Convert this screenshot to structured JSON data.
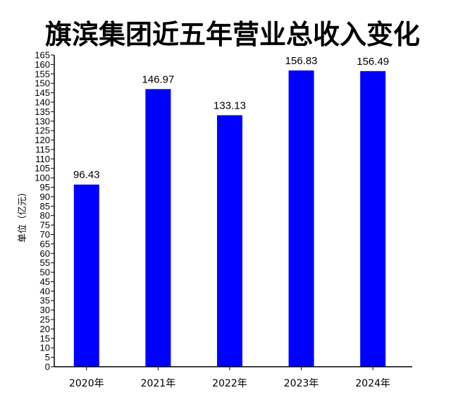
{
  "chart_data": {
    "type": "bar",
    "title": "旗滨集团近五年营业总收入变化",
    "ylabel": "单位（亿元）",
    "xlabel": "",
    "categories": [
      "2020年",
      "2021年",
      "2022年",
      "2023年",
      "2024年"
    ],
    "values": [
      96.43,
      146.97,
      133.13,
      156.83,
      156.49
    ],
    "value_labels": [
      "96.43",
      "146.97",
      "133.13",
      "156.83",
      "156.49"
    ],
    "ylim": [
      0,
      165
    ],
    "ytick_step": 5,
    "bar_color": "#0000ff",
    "grid": false,
    "legend": "none"
  }
}
